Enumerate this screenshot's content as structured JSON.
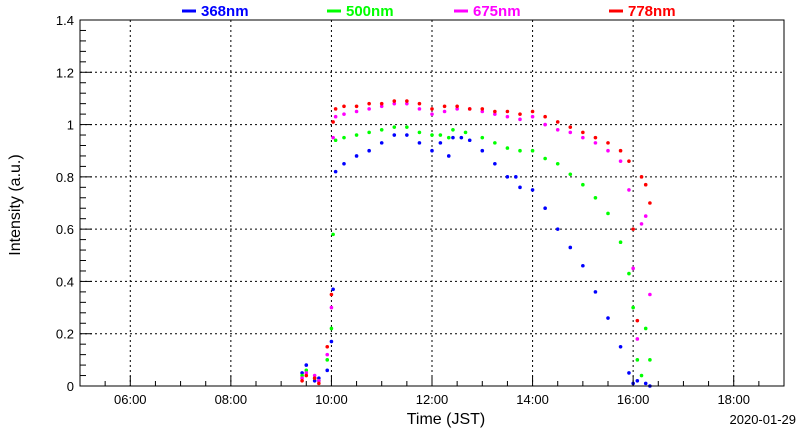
{
  "chart_data": {
    "type": "scatter",
    "xlabel": "Time (JST)",
    "ylabel": "Intensity (a.u.)",
    "date": "2020-01-29",
    "xlim": [
      "05:00",
      "19:00"
    ],
    "ylim": [
      0,
      1.4
    ],
    "xticks": [
      "06:00",
      "08:00",
      "10:00",
      "12:00",
      "14:00",
      "16:00",
      "18:00"
    ],
    "yticks": [
      "0",
      "0.2",
      "0.4",
      "0.6",
      "0.8",
      "1",
      "1.2",
      "1.4"
    ],
    "grid": true,
    "legend": "top",
    "series": [
      {
        "name": "368nm",
        "color": "#0000ff",
        "points": [
          [
            "09:25",
            0.05
          ],
          [
            "09:30",
            0.08
          ],
          [
            "09:40",
            0.02
          ],
          [
            "09:45",
            0.03
          ],
          [
            "09:55",
            0.06
          ],
          [
            "10:00",
            0.17
          ],
          [
            "10:02",
            0.37
          ],
          [
            "10:05",
            0.82
          ],
          [
            "10:15",
            0.85
          ],
          [
            "10:30",
            0.88
          ],
          [
            "10:45",
            0.9
          ],
          [
            "11:00",
            0.93
          ],
          [
            "11:15",
            0.96
          ],
          [
            "11:30",
            0.96
          ],
          [
            "11:45",
            0.93
          ],
          [
            "12:00",
            0.9
          ],
          [
            "12:10",
            0.93
          ],
          [
            "12:20",
            0.88
          ],
          [
            "12:25",
            0.95
          ],
          [
            "12:35",
            0.95
          ],
          [
            "12:45",
            0.94
          ],
          [
            "13:00",
            0.9
          ],
          [
            "13:15",
            0.85
          ],
          [
            "13:30",
            0.8
          ],
          [
            "13:40",
            0.8
          ],
          [
            "13:45",
            0.76
          ],
          [
            "14:00",
            0.75
          ],
          [
            "14:15",
            0.68
          ],
          [
            "14:30",
            0.6
          ],
          [
            "14:45",
            0.53
          ],
          [
            "15:00",
            0.46
          ],
          [
            "15:15",
            0.36
          ],
          [
            "15:30",
            0.26
          ],
          [
            "15:45",
            0.15
          ],
          [
            "15:55",
            0.05
          ],
          [
            "16:00",
            0.01
          ],
          [
            "16:05",
            0.02
          ],
          [
            "16:15",
            0.01
          ],
          [
            "16:20",
            0.0
          ]
        ]
      },
      {
        "name": "500nm",
        "color": "#00ff00",
        "points": [
          [
            "09:25",
            0.04
          ],
          [
            "09:30",
            0.06
          ],
          [
            "09:40",
            0.03
          ],
          [
            "09:45",
            0.02
          ],
          [
            "09:55",
            0.1
          ],
          [
            "10:00",
            0.22
          ],
          [
            "10:02",
            0.58
          ],
          [
            "10:05",
            0.94
          ],
          [
            "10:15",
            0.95
          ],
          [
            "10:30",
            0.96
          ],
          [
            "10:45",
            0.97
          ],
          [
            "11:00",
            0.98
          ],
          [
            "11:15",
            0.99
          ],
          [
            "11:30",
            0.99
          ],
          [
            "11:45",
            0.97
          ],
          [
            "12:00",
            0.96
          ],
          [
            "12:10",
            0.96
          ],
          [
            "12:20",
            0.95
          ],
          [
            "12:25",
            0.98
          ],
          [
            "12:40",
            0.97
          ],
          [
            "13:00",
            0.95
          ],
          [
            "13:15",
            0.93
          ],
          [
            "13:30",
            0.91
          ],
          [
            "13:45",
            0.9
          ],
          [
            "14:00",
            0.9
          ],
          [
            "14:15",
            0.87
          ],
          [
            "14:30",
            0.85
          ],
          [
            "14:45",
            0.81
          ],
          [
            "15:00",
            0.77
          ],
          [
            "15:15",
            0.72
          ],
          [
            "15:30",
            0.66
          ],
          [
            "15:45",
            0.55
          ],
          [
            "15:55",
            0.43
          ],
          [
            "16:00",
            0.3
          ],
          [
            "16:05",
            0.1
          ],
          [
            "16:10",
            0.04
          ],
          [
            "16:15",
            0.22
          ],
          [
            "16:20",
            0.1
          ]
        ]
      },
      {
        "name": "675nm",
        "color": "#ff00ff",
        "points": [
          [
            "09:25",
            0.03
          ],
          [
            "09:30",
            0.05
          ],
          [
            "09:40",
            0.04
          ],
          [
            "09:45",
            0.02
          ],
          [
            "09:55",
            0.12
          ],
          [
            "10:00",
            0.3
          ],
          [
            "10:02",
            0.95
          ],
          [
            "10:05",
            1.03
          ],
          [
            "10:15",
            1.04
          ],
          [
            "10:30",
            1.05
          ],
          [
            "10:45",
            1.06
          ],
          [
            "11:00",
            1.07
          ],
          [
            "11:15",
            1.08
          ],
          [
            "11:30",
            1.08
          ],
          [
            "11:45",
            1.06
          ],
          [
            "12:00",
            1.04
          ],
          [
            "12:15",
            1.05
          ],
          [
            "12:30",
            1.06
          ],
          [
            "12:45",
            1.06
          ],
          [
            "13:00",
            1.05
          ],
          [
            "13:15",
            1.04
          ],
          [
            "13:30",
            1.03
          ],
          [
            "13:45",
            1.02
          ],
          [
            "14:00",
            1.03
          ],
          [
            "14:15",
            1.0
          ],
          [
            "14:30",
            0.98
          ],
          [
            "14:45",
            0.97
          ],
          [
            "15:00",
            0.95
          ],
          [
            "15:15",
            0.93
          ],
          [
            "15:30",
            0.9
          ],
          [
            "15:45",
            0.86
          ],
          [
            "15:55",
            0.75
          ],
          [
            "16:00",
            0.45
          ],
          [
            "16:05",
            0.18
          ],
          [
            "16:10",
            0.62
          ],
          [
            "16:15",
            0.65
          ],
          [
            "16:20",
            0.35
          ]
        ]
      },
      {
        "name": "778nm",
        "color": "#ff0000",
        "points": [
          [
            "09:25",
            0.02
          ],
          [
            "09:30",
            0.04
          ],
          [
            "09:40",
            0.03
          ],
          [
            "09:45",
            0.01
          ],
          [
            "09:55",
            0.15
          ],
          [
            "10:00",
            0.35
          ],
          [
            "10:02",
            1.01
          ],
          [
            "10:05",
            1.06
          ],
          [
            "10:15",
            1.07
          ],
          [
            "10:30",
            1.07
          ],
          [
            "10:45",
            1.08
          ],
          [
            "11:00",
            1.08
          ],
          [
            "11:15",
            1.09
          ],
          [
            "11:30",
            1.09
          ],
          [
            "11:45",
            1.08
          ],
          [
            "12:00",
            1.06
          ],
          [
            "12:15",
            1.07
          ],
          [
            "12:30",
            1.07
          ],
          [
            "12:45",
            1.06
          ],
          [
            "13:00",
            1.06
          ],
          [
            "13:15",
            1.05
          ],
          [
            "13:30",
            1.05
          ],
          [
            "13:45",
            1.04
          ],
          [
            "14:00",
            1.05
          ],
          [
            "14:15",
            1.03
          ],
          [
            "14:30",
            1.01
          ],
          [
            "14:45",
            0.99
          ],
          [
            "15:00",
            0.97
          ],
          [
            "15:15",
            0.95
          ],
          [
            "15:30",
            0.93
          ],
          [
            "15:45",
            0.9
          ],
          [
            "15:55",
            0.86
          ],
          [
            "16:00",
            0.6
          ],
          [
            "16:05",
            0.25
          ],
          [
            "16:10",
            0.8
          ],
          [
            "16:15",
            0.77
          ],
          [
            "16:20",
            0.7
          ]
        ]
      }
    ]
  }
}
